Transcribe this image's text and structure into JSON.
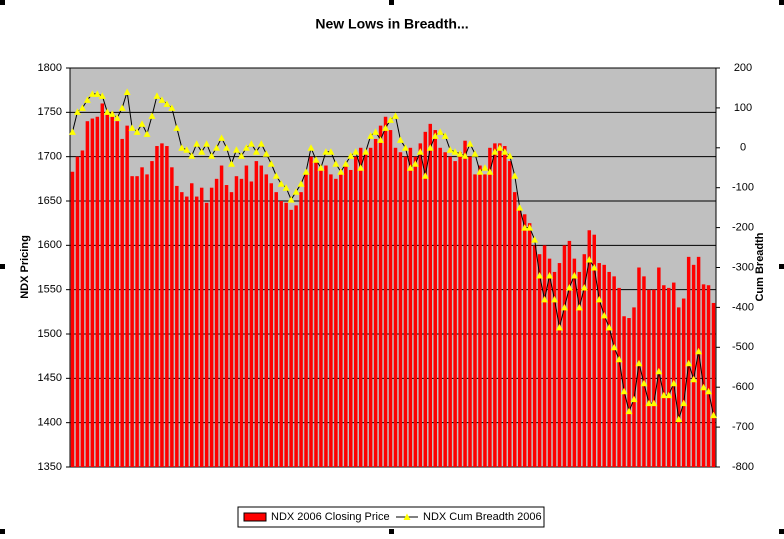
{
  "chart_data": {
    "type": "bar-line",
    "title": "New Lows in Breadth...",
    "y_label": "NDX Pricing",
    "y2_label": "Cum Breadth",
    "ylim": [
      1350,
      1800
    ],
    "yticks": [
      1350,
      1400,
      1450,
      1500,
      1550,
      1600,
      1650,
      1700,
      1750,
      1800
    ],
    "y2lim": [
      -800,
      200
    ],
    "y2ticks": [
      -800,
      -700,
      -600,
      -500,
      -400,
      -300,
      -200,
      -100,
      0,
      100,
      200
    ],
    "grid": true,
    "legend": "bottom",
    "series": [
      {
        "name": "NDX 2006 Closing Price",
        "type": "bar",
        "color": "#ff0000",
        "values": [
          1683,
          1700,
          1707,
          1740,
          1743,
          1745,
          1760,
          1750,
          1750,
          1740,
          1720,
          1735,
          1678,
          1678,
          1688,
          1680,
          1695,
          1712,
          1715,
          1712,
          1688,
          1667,
          1660,
          1655,
          1670,
          1655,
          1665,
          1648,
          1665,
          1675,
          1690,
          1668,
          1660,
          1678,
          1675,
          1690,
          1672,
          1695,
          1690,
          1680,
          1670,
          1660,
          1650,
          1648,
          1640,
          1645,
          1660,
          1680,
          1700,
          1695,
          1685,
          1690,
          1680,
          1675,
          1680,
          1690,
          1685,
          1700,
          1710,
          1705,
          1710,
          1720,
          1735,
          1745,
          1730,
          1710,
          1705,
          1700,
          1710,
          1700,
          1715,
          1728,
          1737,
          1730,
          1710,
          1705,
          1700,
          1695,
          1705,
          1718,
          1700,
          1680,
          1690,
          1680,
          1710,
          1715,
          1715,
          1712,
          1695,
          1660,
          1640,
          1635,
          1625,
          1600,
          1590,
          1600,
          1585,
          1570,
          1580,
          1600,
          1605,
          1585,
          1570,
          1590,
          1617,
          1612,
          1580,
          1578,
          1570,
          1565,
          1552,
          1520,
          1518,
          1530,
          1575,
          1565,
          1550,
          1550,
          1575,
          1555,
          1552,
          1558,
          1530,
          1540,
          1587,
          1578,
          1587,
          1556,
          1555,
          1535
        ]
      },
      {
        "name": "NDX Cum Breadth 2006",
        "type": "line",
        "axis": "y2",
        "color": "#000000",
        "marker_color": "#ffff00",
        "values": [
          40,
          90,
          100,
          120,
          135,
          135,
          130,
          90,
          85,
          75,
          100,
          140,
          50,
          40,
          60,
          35,
          80,
          130,
          120,
          110,
          100,
          50,
          0,
          -5,
          -20,
          10,
          -10,
          10,
          -20,
          0,
          25,
          0,
          -40,
          -5,
          -20,
          0,
          10,
          -10,
          10,
          -15,
          -40,
          -70,
          -90,
          -100,
          -130,
          -110,
          -90,
          -60,
          0,
          -30,
          -50,
          -10,
          -10,
          -40,
          -60,
          -40,
          -20,
          -10,
          -50,
          -10,
          30,
          40,
          20,
          50,
          70,
          80,
          20,
          0,
          -50,
          -40,
          -10,
          -70,
          0,
          30,
          40,
          30,
          -5,
          -10,
          -15,
          -20,
          10,
          -15,
          -60,
          -50,
          -60,
          -10,
          0,
          -10,
          -20,
          -70,
          -150,
          -200,
          -200,
          -230,
          -320,
          -380,
          -320,
          -380,
          -450,
          -400,
          -350,
          -320,
          -400,
          -350,
          -280,
          -300,
          -380,
          -420,
          -450,
          -500,
          -530,
          -610,
          -660,
          -630,
          -540,
          -590,
          -640,
          -640,
          -560,
          -620,
          -620,
          -590,
          -680,
          -640,
          -540,
          -580,
          -510,
          -600,
          -610,
          -670
        ]
      }
    ]
  }
}
